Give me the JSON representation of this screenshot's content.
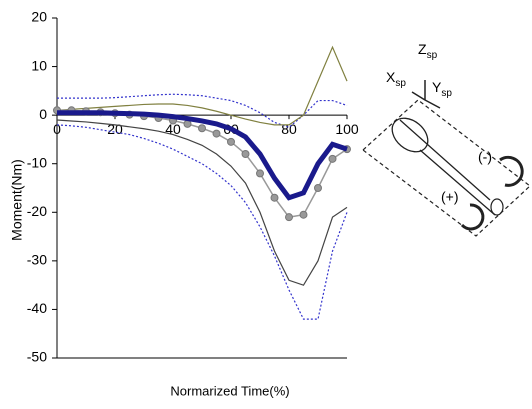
{
  "chart_data": {
    "type": "line",
    "xlabel": "Normarized Time(%)",
    "ylabel": "Moment(Nm)",
    "x": [
      0,
      5,
      10,
      15,
      20,
      25,
      30,
      35,
      40,
      45,
      50,
      55,
      60,
      65,
      70,
      75,
      80,
      85,
      90,
      95,
      100
    ],
    "xlim": [
      0,
      100
    ],
    "xticks": [
      0,
      20,
      40,
      60,
      80,
      100
    ],
    "ylim": [
      -50,
      20
    ],
    "yticks": [
      -50,
      -40,
      -30,
      -20,
      -10,
      0,
      10,
      20
    ],
    "series": [
      {
        "color": "#3333cc",
        "style": "dotted",
        "values": [
          3.5,
          3.5,
          3.5,
          3.5,
          3.6,
          3.8,
          4,
          4.2,
          4.3,
          4.2,
          4,
          3.5,
          3,
          2,
          0.5,
          -1.5,
          -2.5,
          0,
          3,
          3,
          2
        ]
      },
      {
        "color": "#3333cc",
        "style": "dotted",
        "values": [
          -2,
          -2.2,
          -2.5,
          -3,
          -3.5,
          -4,
          -4.8,
          -5.8,
          -7,
          -8.5,
          -10,
          -12,
          -14.5,
          -18,
          -23,
          -29,
          -36,
          -42,
          -42,
          -28,
          -20
        ]
      },
      {
        "color": "#808040",
        "style": "solid",
        "values": [
          1,
          1.2,
          1.4,
          1.6,
          1.8,
          2,
          2.2,
          2.3,
          2.3,
          2,
          1.5,
          0.8,
          0,
          -0.8,
          -1.5,
          -2,
          -2,
          0,
          7,
          14,
          7
        ]
      },
      {
        "color": "#444444",
        "style": "solid",
        "values": [
          -1,
          -1.2,
          -1.4,
          -1.7,
          -2,
          -2.4,
          -2.8,
          -3.3,
          -4,
          -5,
          -6.2,
          -8,
          -10.5,
          -14,
          -20,
          -28,
          -34,
          -35,
          -30,
          -21,
          -19
        ]
      },
      {
        "color": "#999999",
        "style": "markers",
        "values": [
          1,
          1,
          0.8,
          0.6,
          0.4,
          0.1,
          -0.2,
          -0.6,
          -1.1,
          -1.8,
          -2.7,
          -3.8,
          -5.5,
          -8,
          -12,
          -17,
          -21,
          -20.5,
          -15,
          -9,
          -7
        ]
      },
      {
        "color": "#1a1a8c",
        "style": "thick",
        "values": [
          0.5,
          0.5,
          0.5,
          0.5,
          0.4,
          0.3,
          0.2,
          0,
          -0.3,
          -0.7,
          -1.2,
          -1.8,
          -2.8,
          -4.5,
          -8,
          -13,
          -17,
          -16,
          -10,
          -6,
          -7
        ]
      }
    ],
    "annotations": [
      {
        "text": "Z",
        "sub": "sp"
      },
      {
        "text": "X",
        "sub": "sp"
      },
      {
        "text": "Y",
        "sub": "sp"
      },
      {
        "text": "(-)"
      },
      {
        "text": "(+)"
      }
    ]
  }
}
